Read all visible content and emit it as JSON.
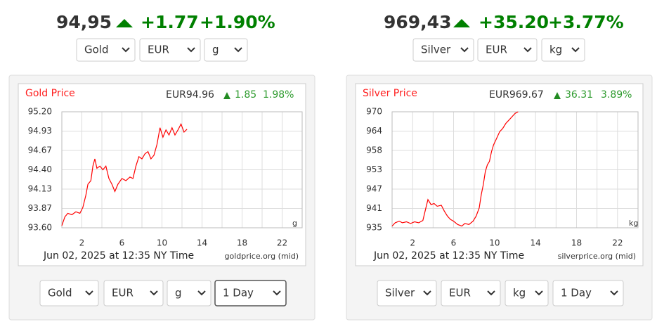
{
  "panels": [
    {
      "price": "94,95",
      "change": "+1.77",
      "change_pct": "+1.90%",
      "selects": [
        "Gold",
        "EUR",
        "g"
      ],
      "bottom_selects": [
        "Gold",
        "EUR",
        "g",
        "1 Day"
      ]
    },
    {
      "price": "969,43",
      "change": "+35.20",
      "change_pct": "+3.77%",
      "selects": [
        "Silver",
        "EUR",
        "kg"
      ],
      "bottom_selects": [
        "Silver",
        "EUR",
        "kg",
        "1 Day"
      ]
    }
  ],
  "chart_data": [
    {
      "type": "line",
      "title": "Gold Price",
      "quote": "EUR94.96",
      "change": "1.85",
      "change_pct": "1.98%",
      "unit": "g",
      "footer": "Jun 02, 2025 at 12:35 NY Time",
      "source": "goldprice.org (mid)",
      "xlim": [
        0,
        24
      ],
      "xticks": [
        2,
        6,
        10,
        14,
        18,
        22
      ],
      "minor_xticks": [
        4,
        8,
        12,
        16,
        20
      ],
      "ylim": [
        93.6,
        95.2
      ],
      "yticks": [
        {
          "value": 93.6,
          "label": "93.60"
        },
        {
          "value": 93.8667,
          "label": "93.87"
        },
        {
          "value": 94.1333,
          "label": "94.13"
        },
        {
          "value": 94.4,
          "label": "94.40"
        },
        {
          "value": 94.6667,
          "label": "94.67"
        },
        {
          "value": 94.9333,
          "label": "94.93"
        },
        {
          "value": 95.2,
          "label": "95.20"
        }
      ],
      "grid": true,
      "series": [
        {
          "color": "#ff0000",
          "x": [
            0,
            0.3,
            0.6,
            1.0,
            1.4,
            1.8,
            2.1,
            2.4,
            2.6,
            2.9,
            3.1,
            3.3,
            3.5,
            3.8,
            4.1,
            4.4,
            4.7,
            5.0,
            5.3,
            5.6,
            6.0,
            6.4,
            6.8,
            7.1,
            7.4,
            7.7,
            8.0,
            8.3,
            8.6,
            8.9,
            9.2,
            9.5,
            9.8,
            10.1,
            10.4,
            10.7,
            11.0,
            11.3,
            11.6,
            11.9,
            12.2,
            12.5
          ],
          "values": [
            93.63,
            93.75,
            93.8,
            93.78,
            93.82,
            93.8,
            93.88,
            94.05,
            94.2,
            94.25,
            94.45,
            94.55,
            94.42,
            94.45,
            94.4,
            94.45,
            94.28,
            94.2,
            94.1,
            94.2,
            94.28,
            94.25,
            94.3,
            94.28,
            94.45,
            94.58,
            94.55,
            94.62,
            94.65,
            94.55,
            94.6,
            94.75,
            94.98,
            94.85,
            94.95,
            94.88,
            94.98,
            94.88,
            94.95,
            95.03,
            94.92,
            94.96
          ]
        }
      ]
    },
    {
      "type": "line",
      "title": "Silver Price",
      "quote": "EUR969.67",
      "change": "36.31",
      "change_pct": "3.89%",
      "unit": "kg",
      "footer": "Jun 02, 2025 at 12:35 NY Time",
      "source": "silverprice.org (mid)",
      "xlim": [
        0,
        24
      ],
      "xticks": [
        2,
        6,
        10,
        14,
        18,
        22
      ],
      "minor_xticks": [
        4,
        8,
        12,
        16,
        20
      ],
      "ylim": [
        935,
        970
      ],
      "yticks": [
        935,
        {
          "value": 940.83,
          "label": "941"
        },
        {
          "value": 946.67,
          "label": "947"
        },
        {
          "value": 952.5,
          "label": "953"
        },
        {
          "value": 958.33,
          "label": "958"
        },
        {
          "value": 964.17,
          "label": "964"
        },
        970
      ],
      "grid": true,
      "series": [
        {
          "color": "#ff0000",
          "x": [
            0,
            0.3,
            0.7,
            1.0,
            1.4,
            1.8,
            2.2,
            2.6,
            3.0,
            3.3,
            3.5,
            3.8,
            4.1,
            4.4,
            4.8,
            5.1,
            5.4,
            5.7,
            6.0,
            6.4,
            6.8,
            7.1,
            7.5,
            7.9,
            8.2,
            8.5,
            8.7,
            8.9,
            9.1,
            9.3,
            9.5,
            9.7,
            9.9,
            10.2,
            10.5,
            10.8,
            11.1,
            11.4,
            11.7,
            12.0,
            12.3
          ],
          "values": [
            935.5,
            936.5,
            937,
            936.5,
            936.8,
            936.3,
            936.8,
            936.5,
            937.2,
            941,
            943.5,
            942,
            942.3,
            941.5,
            941.8,
            940,
            938.5,
            937.5,
            937,
            936,
            935.5,
            936.3,
            936,
            937,
            938.5,
            941,
            945,
            948,
            952,
            954,
            955,
            958,
            960,
            962,
            964,
            965,
            966.5,
            967.5,
            968.5,
            969.5,
            970
          ]
        }
      ]
    }
  ]
}
